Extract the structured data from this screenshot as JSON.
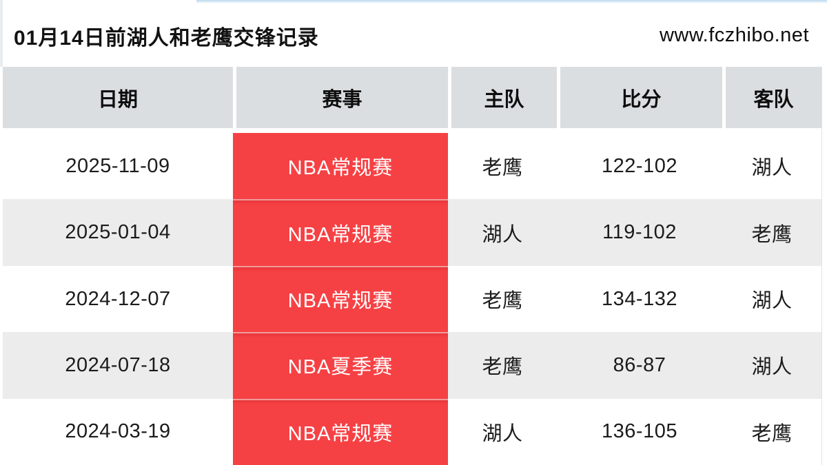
{
  "page": {
    "title": "01月14日前湖人和老鹰交锋记录",
    "site_url": "www.fczhibo.net"
  },
  "colors": {
    "accent_red": "#f64144",
    "header_bg": "#dbdee0",
    "row_alt_bg": "#ececec",
    "top_line_blue": "#b9d7ee"
  },
  "table": {
    "columns": [
      "日期",
      "赛事",
      "主队",
      "比分",
      "客队"
    ],
    "rows": [
      {
        "date": "2025-11-09",
        "event": "NBA常规赛",
        "home": "老鹰",
        "score": "122-102",
        "away": "湖人"
      },
      {
        "date": "2025-01-04",
        "event": "NBA常规赛",
        "home": "湖人",
        "score": "119-102",
        "away": "老鹰"
      },
      {
        "date": "2024-12-07",
        "event": "NBA常规赛",
        "home": "老鹰",
        "score": "134-132",
        "away": "湖人"
      },
      {
        "date": "2024-07-18",
        "event": "NBA夏季赛",
        "home": "老鹰",
        "score": "86-87",
        "away": "湖人"
      },
      {
        "date": "2024-03-19",
        "event": "NBA常规赛",
        "home": "湖人",
        "score": "136-105",
        "away": "老鹰"
      }
    ]
  }
}
